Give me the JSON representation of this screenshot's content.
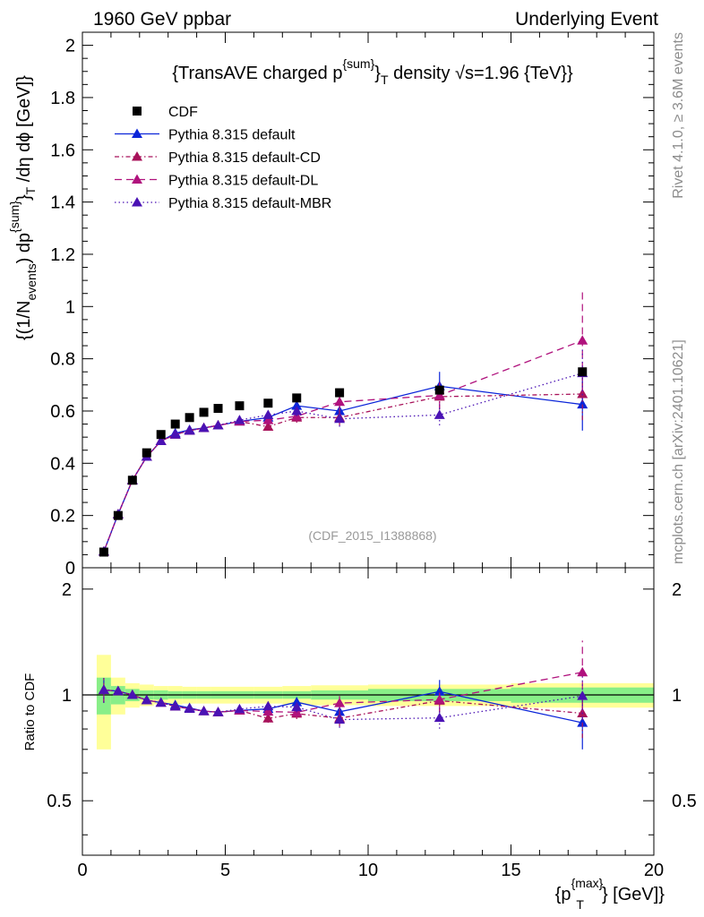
{
  "header": {
    "left": "1960 GeV ppbar",
    "right": "Underlying Event"
  },
  "side_labels": {
    "rivet": "Rivet 4.1.0, ≥ 3.6M events",
    "mcplots": "mcplots.cern.ch [arXiv:2401.10621]"
  },
  "chart_data": {
    "type": "line",
    "title": "{TransAVE charged p^{sum}_T density √s=1.96 {TeV}}",
    "analysis_id": "(CDF_2015_I1388868)",
    "xlabel": "{p_T^{max}} [GeV]}",
    "ylabel": "{(1/N_events) dp^{sum}_T /dη dϕ [GeV]}",
    "ratio_ylabel": "Ratio to CDF",
    "xlim": [
      0,
      20
    ],
    "ylim": [
      0,
      2.05
    ],
    "ratio_ylim": [
      0.35,
      2.3
    ],
    "x_ticks": [
      "0",
      "5",
      "10",
      "15",
      "20"
    ],
    "y_ticks": [
      "0",
      "0.2",
      "0.4",
      "0.6",
      "0.8",
      "1",
      "1.2",
      "1.4",
      "1.6",
      "1.8",
      "2"
    ],
    "ratio_ticks": [
      "0.5",
      "1",
      "2"
    ],
    "data": {
      "name": "CDF",
      "color": "#000000",
      "x": [
        0.75,
        1.25,
        1.75,
        2.25,
        2.75,
        3.25,
        3.75,
        4.25,
        4.75,
        5.5,
        6.5,
        7.5,
        9.0,
        12.5,
        17.5
      ],
      "y": [
        0.06,
        0.2,
        0.335,
        0.44,
        0.51,
        0.55,
        0.575,
        0.595,
        0.61,
        0.62,
        0.63,
        0.65,
        0.67,
        0.68,
        0.75
      ],
      "band_x": [
        0.5,
        1.0,
        1.5,
        2.0,
        2.5,
        3.0,
        3.5,
        4.0,
        4.5,
        5.0,
        6.0,
        7.0,
        8.0,
        10.0,
        15.0,
        20.0
      ],
      "stat_rel": [
        0.12,
        0.06,
        0.04,
        0.03,
        0.03,
        0.025,
        0.025,
        0.025,
        0.025,
        0.025,
        0.025,
        0.025,
        0.03,
        0.04,
        0.05
      ],
      "tot_rel": [
        0.3,
        0.12,
        0.08,
        0.07,
        0.06,
        0.06,
        0.055,
        0.055,
        0.055,
        0.055,
        0.055,
        0.06,
        0.065,
        0.07,
        0.08
      ]
    },
    "series": [
      {
        "name": "Pythia 8.315 default",
        "color": "#0b25d9",
        "dash": "",
        "x": [
          0.75,
          1.25,
          1.75,
          2.25,
          2.75,
          3.25,
          3.75,
          4.25,
          4.75,
          5.5,
          6.5,
          7.5,
          9.0,
          12.5,
          17.5
        ],
        "y": [
          0.062,
          0.205,
          0.335,
          0.425,
          0.485,
          0.515,
          0.528,
          0.535,
          0.545,
          0.56,
          0.575,
          0.62,
          0.6,
          0.695,
          0.625
        ],
        "err": [
          0.005,
          0.005,
          0.005,
          0.006,
          0.007,
          0.008,
          0.008,
          0.009,
          0.01,
          0.01,
          0.015,
          0.02,
          0.03,
          0.055,
          0.1
        ]
      },
      {
        "name": "Pythia 8.315 default-CD",
        "color": "#a8125a",
        "dash": "5,3,1.5,3",
        "x": [
          0.75,
          1.25,
          1.75,
          2.25,
          2.75,
          3.25,
          3.75,
          4.25,
          4.75,
          5.5,
          6.5,
          7.5,
          9.0,
          12.5,
          17.5
        ],
        "y": [
          0.062,
          0.205,
          0.335,
          0.425,
          0.485,
          0.51,
          0.525,
          0.535,
          0.545,
          0.56,
          0.54,
          0.575,
          0.575,
          0.655,
          0.665
        ],
        "err": [
          0.005,
          0.005,
          0.005,
          0.006,
          0.007,
          0.008,
          0.008,
          0.009,
          0.01,
          0.01,
          0.015,
          0.02,
          0.03,
          0.05,
          0.1
        ]
      },
      {
        "name": "Pythia 8.315 default-DL",
        "color": "#b0127d",
        "dash": "8,5",
        "x": [
          0.75,
          1.25,
          1.75,
          2.25,
          2.75,
          3.25,
          3.75,
          4.25,
          4.75,
          5.5,
          6.5,
          7.5,
          9.0,
          12.5,
          17.5
        ],
        "y": [
          0.062,
          0.205,
          0.335,
          0.425,
          0.485,
          0.51,
          0.525,
          0.535,
          0.545,
          0.56,
          0.565,
          0.58,
          0.635,
          0.66,
          0.87
        ],
        "err": [
          0.005,
          0.005,
          0.005,
          0.006,
          0.007,
          0.008,
          0.008,
          0.009,
          0.01,
          0.01,
          0.015,
          0.02,
          0.03,
          0.05,
          0.2
        ]
      },
      {
        "name": "Pythia 8.315 default-MBR",
        "color": "#4a12b4",
        "dash": "1.5,3",
        "x": [
          0.75,
          1.25,
          1.75,
          2.25,
          2.75,
          3.25,
          3.75,
          4.25,
          4.75,
          5.5,
          6.5,
          7.5,
          9.0,
          12.5,
          17.5
        ],
        "y": [
          0.062,
          0.205,
          0.335,
          0.425,
          0.485,
          0.51,
          0.525,
          0.535,
          0.545,
          0.565,
          0.585,
          0.6,
          0.57,
          0.585,
          0.745
        ],
        "err": [
          0.005,
          0.005,
          0.005,
          0.006,
          0.007,
          0.008,
          0.008,
          0.009,
          0.01,
          0.01,
          0.015,
          0.02,
          0.03,
          0.04,
          0.1
        ]
      }
    ]
  }
}
